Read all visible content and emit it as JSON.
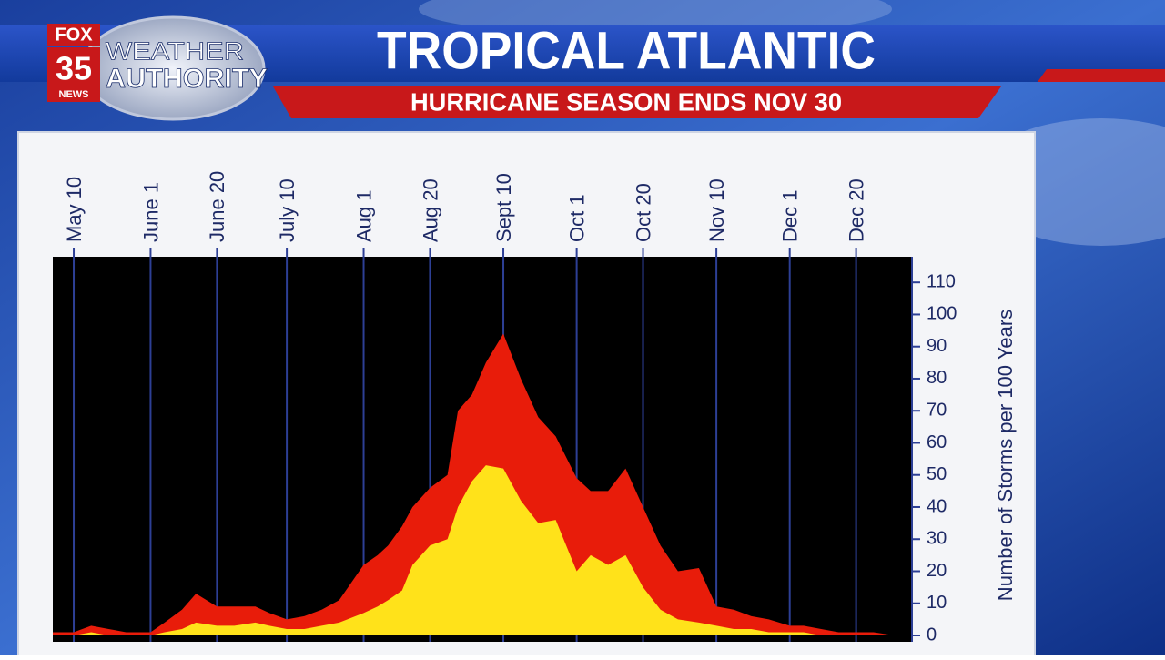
{
  "logo": {
    "network": "FOX",
    "channel": "35",
    "news": "NEWS",
    "line1": "WEATHER",
    "line2": "AUTHORITY"
  },
  "chart_data": {
    "type": "area",
    "title": "TROPICAL ATLANTIC",
    "subtitle": "HURRICANE SEASON ENDS NOV 30",
    "y_label": "Number of Storms per 100 Years",
    "x": [
      "May 4",
      "May 10",
      "May 15",
      "May 20",
      "May 25",
      "June 1",
      "June 5",
      "June 10",
      "June 14",
      "June 20",
      "June 25",
      "July 1",
      "July 5",
      "July 10",
      "July 15",
      "July 20",
      "July 25",
      "Aug 1",
      "Aug 5",
      "Aug 8",
      "Aug 12",
      "Aug 15",
      "Aug 20",
      "Aug 25",
      "Aug 28",
      "Sept 1",
      "Sept 5",
      "Sept 10",
      "Sept 15",
      "Sept 20",
      "Sept 25",
      "Oct 1",
      "Oct 5",
      "Oct 10",
      "Oct 15",
      "Oct 20",
      "Oct 25",
      "Oct 30",
      "Nov 5",
      "Nov 10",
      "Nov 15",
      "Nov 20",
      "Nov 25",
      "Dec 1",
      "Dec 5",
      "Dec 10",
      "Dec 15",
      "Dec 20",
      "Dec 25",
      "Dec 31"
    ],
    "series": [
      {
        "color": "#e81c0a",
        "values": [
          1,
          1,
          3,
          2,
          1,
          1,
          4,
          8,
          13,
          9,
          9,
          9,
          7,
          5,
          6,
          8,
          11,
          22,
          25,
          28,
          34,
          40,
          46,
          50,
          70,
          75,
          85,
          94,
          80,
          68,
          62,
          49,
          45,
          45,
          52,
          40,
          28,
          20,
          21,
          9,
          8,
          6,
          5,
          3,
          3,
          2,
          1,
          1,
          1,
          0
        ]
      },
      {
        "color": "#ffe21a",
        "values": [
          0,
          0,
          1,
          0,
          0,
          0,
          1,
          2,
          4,
          3,
          3,
          4,
          3,
          2,
          2,
          3,
          4,
          7,
          9,
          11,
          14,
          22,
          28,
          30,
          40,
          48,
          53,
          52,
          42,
          35,
          36,
          20,
          25,
          22,
          25,
          15,
          8,
          5,
          4,
          3,
          2,
          2,
          1,
          1,
          1,
          0,
          0,
          0,
          0,
          0
        ]
      }
    ],
    "xlim": [
      "May 4",
      "Jan 5"
    ],
    "xticks": [
      "May 10",
      "June 1",
      "June 20",
      "July 10",
      "Aug 1",
      "Aug 20",
      "Sept 10",
      "Oct 1",
      "Oct 20",
      "Nov 10",
      "Dec 1",
      "Dec 20"
    ],
    "ylim": [
      0,
      118
    ],
    "yticks": [
      0,
      10,
      20,
      30,
      40,
      50,
      60,
      70,
      80,
      90,
      100,
      110
    ],
    "grid": true
  }
}
